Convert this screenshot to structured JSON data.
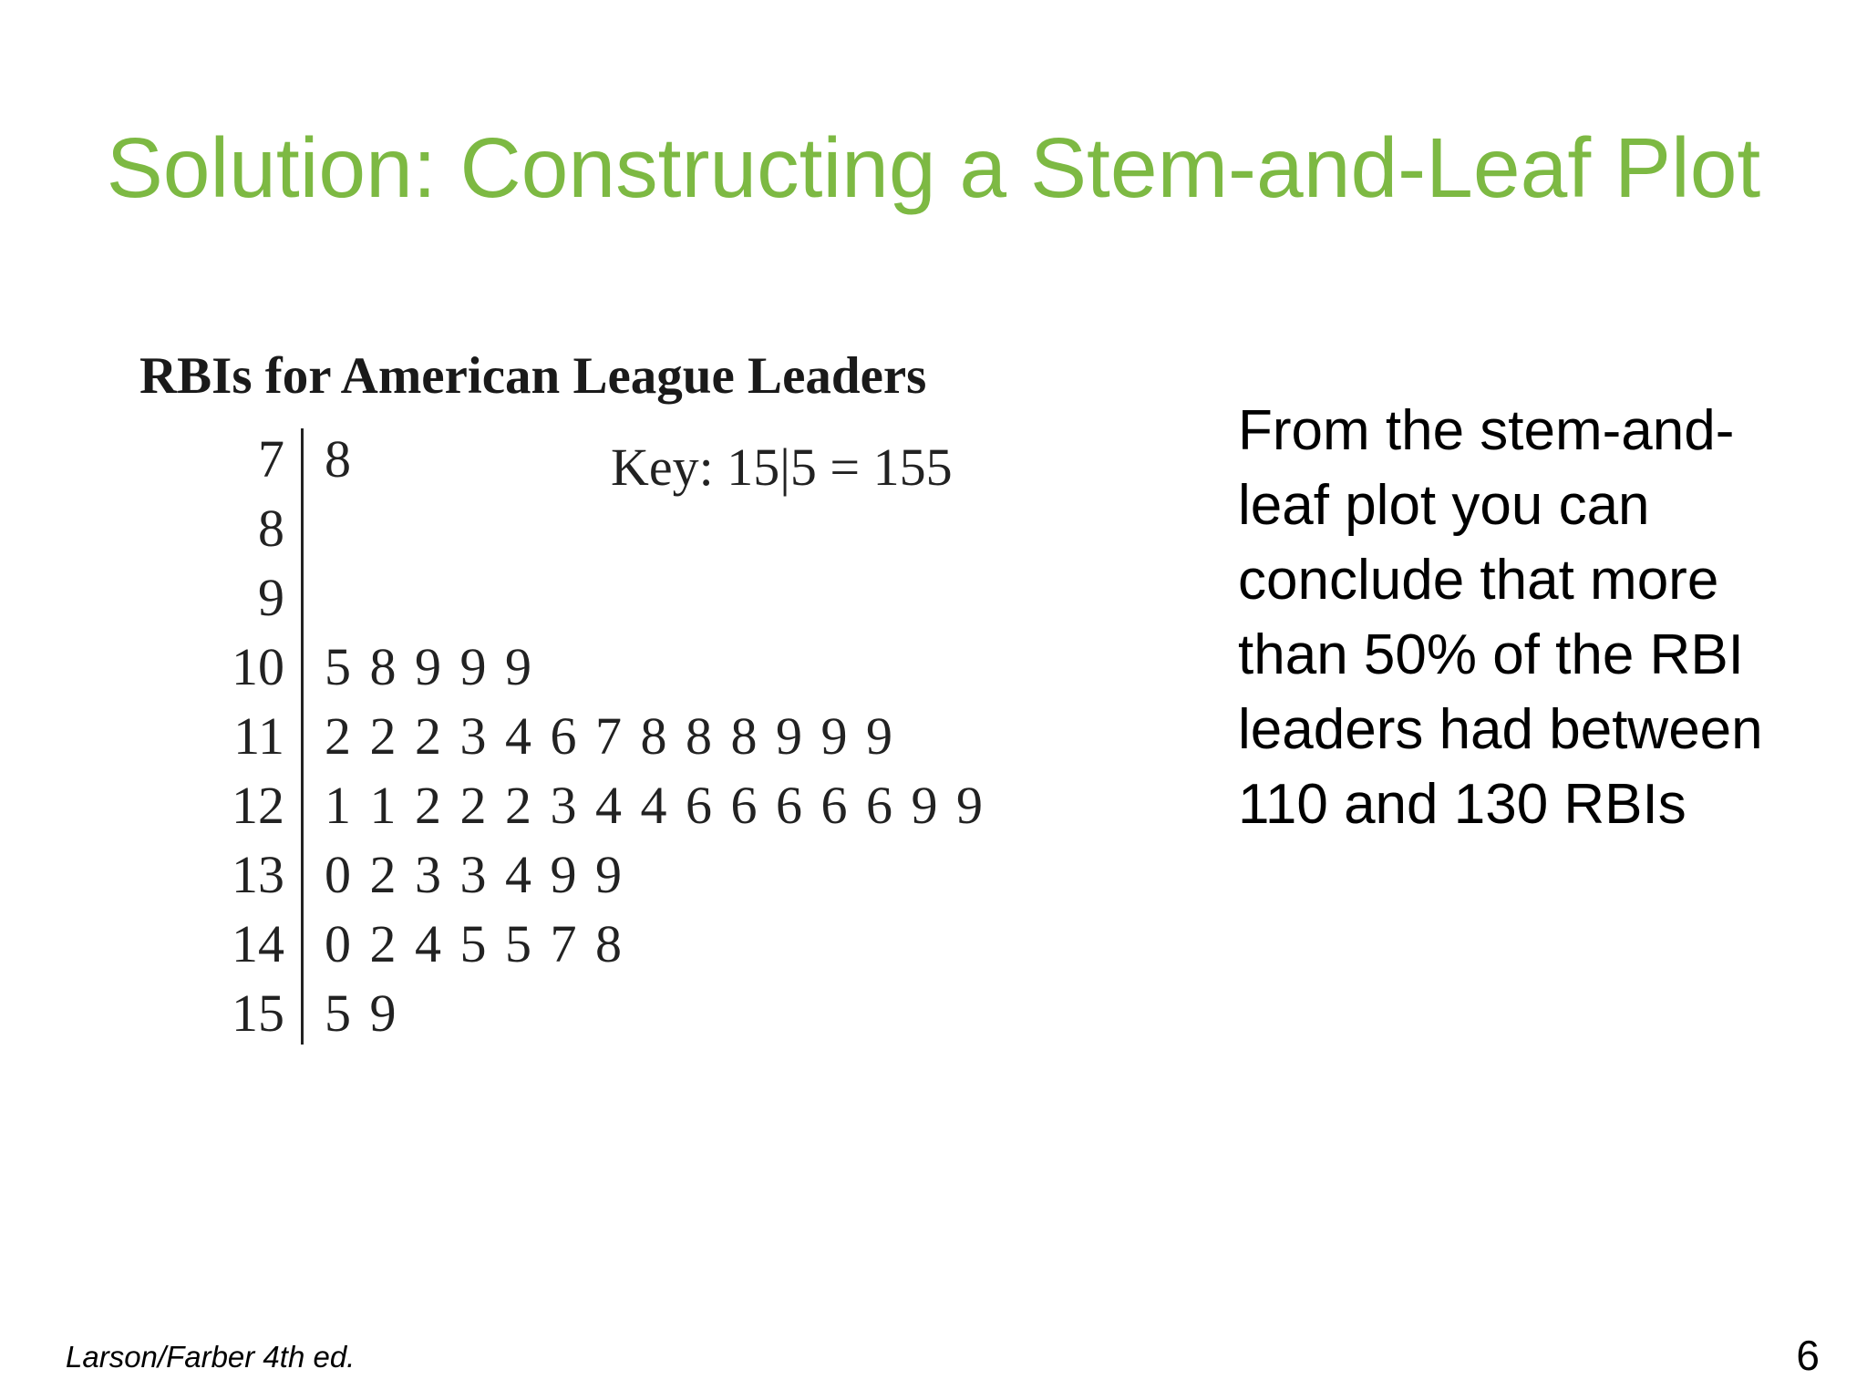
{
  "slide": {
    "title": "Solution: Constructing a Stem-and-Leaf Plot",
    "conclusion": "From the stem-and-leaf plot you can conclude that more than 50% of the RBI leaders had between 110 and 130 RBIs",
    "footer": "Larson/Farber 4th ed.",
    "page_number": "6"
  },
  "chart_data": {
    "type": "table",
    "title": "RBIs for American League Leaders",
    "key": "Key: 15|5 = 155",
    "rows": [
      {
        "stem": "7",
        "leaves": [
          8
        ]
      },
      {
        "stem": "8",
        "leaves": []
      },
      {
        "stem": "9",
        "leaves": []
      },
      {
        "stem": "10",
        "leaves": [
          5,
          8,
          9,
          9,
          9
        ]
      },
      {
        "stem": "11",
        "leaves": [
          2,
          2,
          2,
          3,
          4,
          6,
          7,
          8,
          8,
          8,
          9,
          9,
          9
        ]
      },
      {
        "stem": "12",
        "leaves": [
          1,
          1,
          2,
          2,
          2,
          3,
          4,
          4,
          6,
          6,
          6,
          6,
          6,
          9,
          9
        ]
      },
      {
        "stem": "13",
        "leaves": [
          0,
          2,
          3,
          3,
          4,
          9,
          9
        ]
      },
      {
        "stem": "14",
        "leaves": [
          0,
          2,
          4,
          5,
          5,
          7,
          8
        ]
      },
      {
        "stem": "15",
        "leaves": [
          5,
          9
        ]
      }
    ]
  }
}
